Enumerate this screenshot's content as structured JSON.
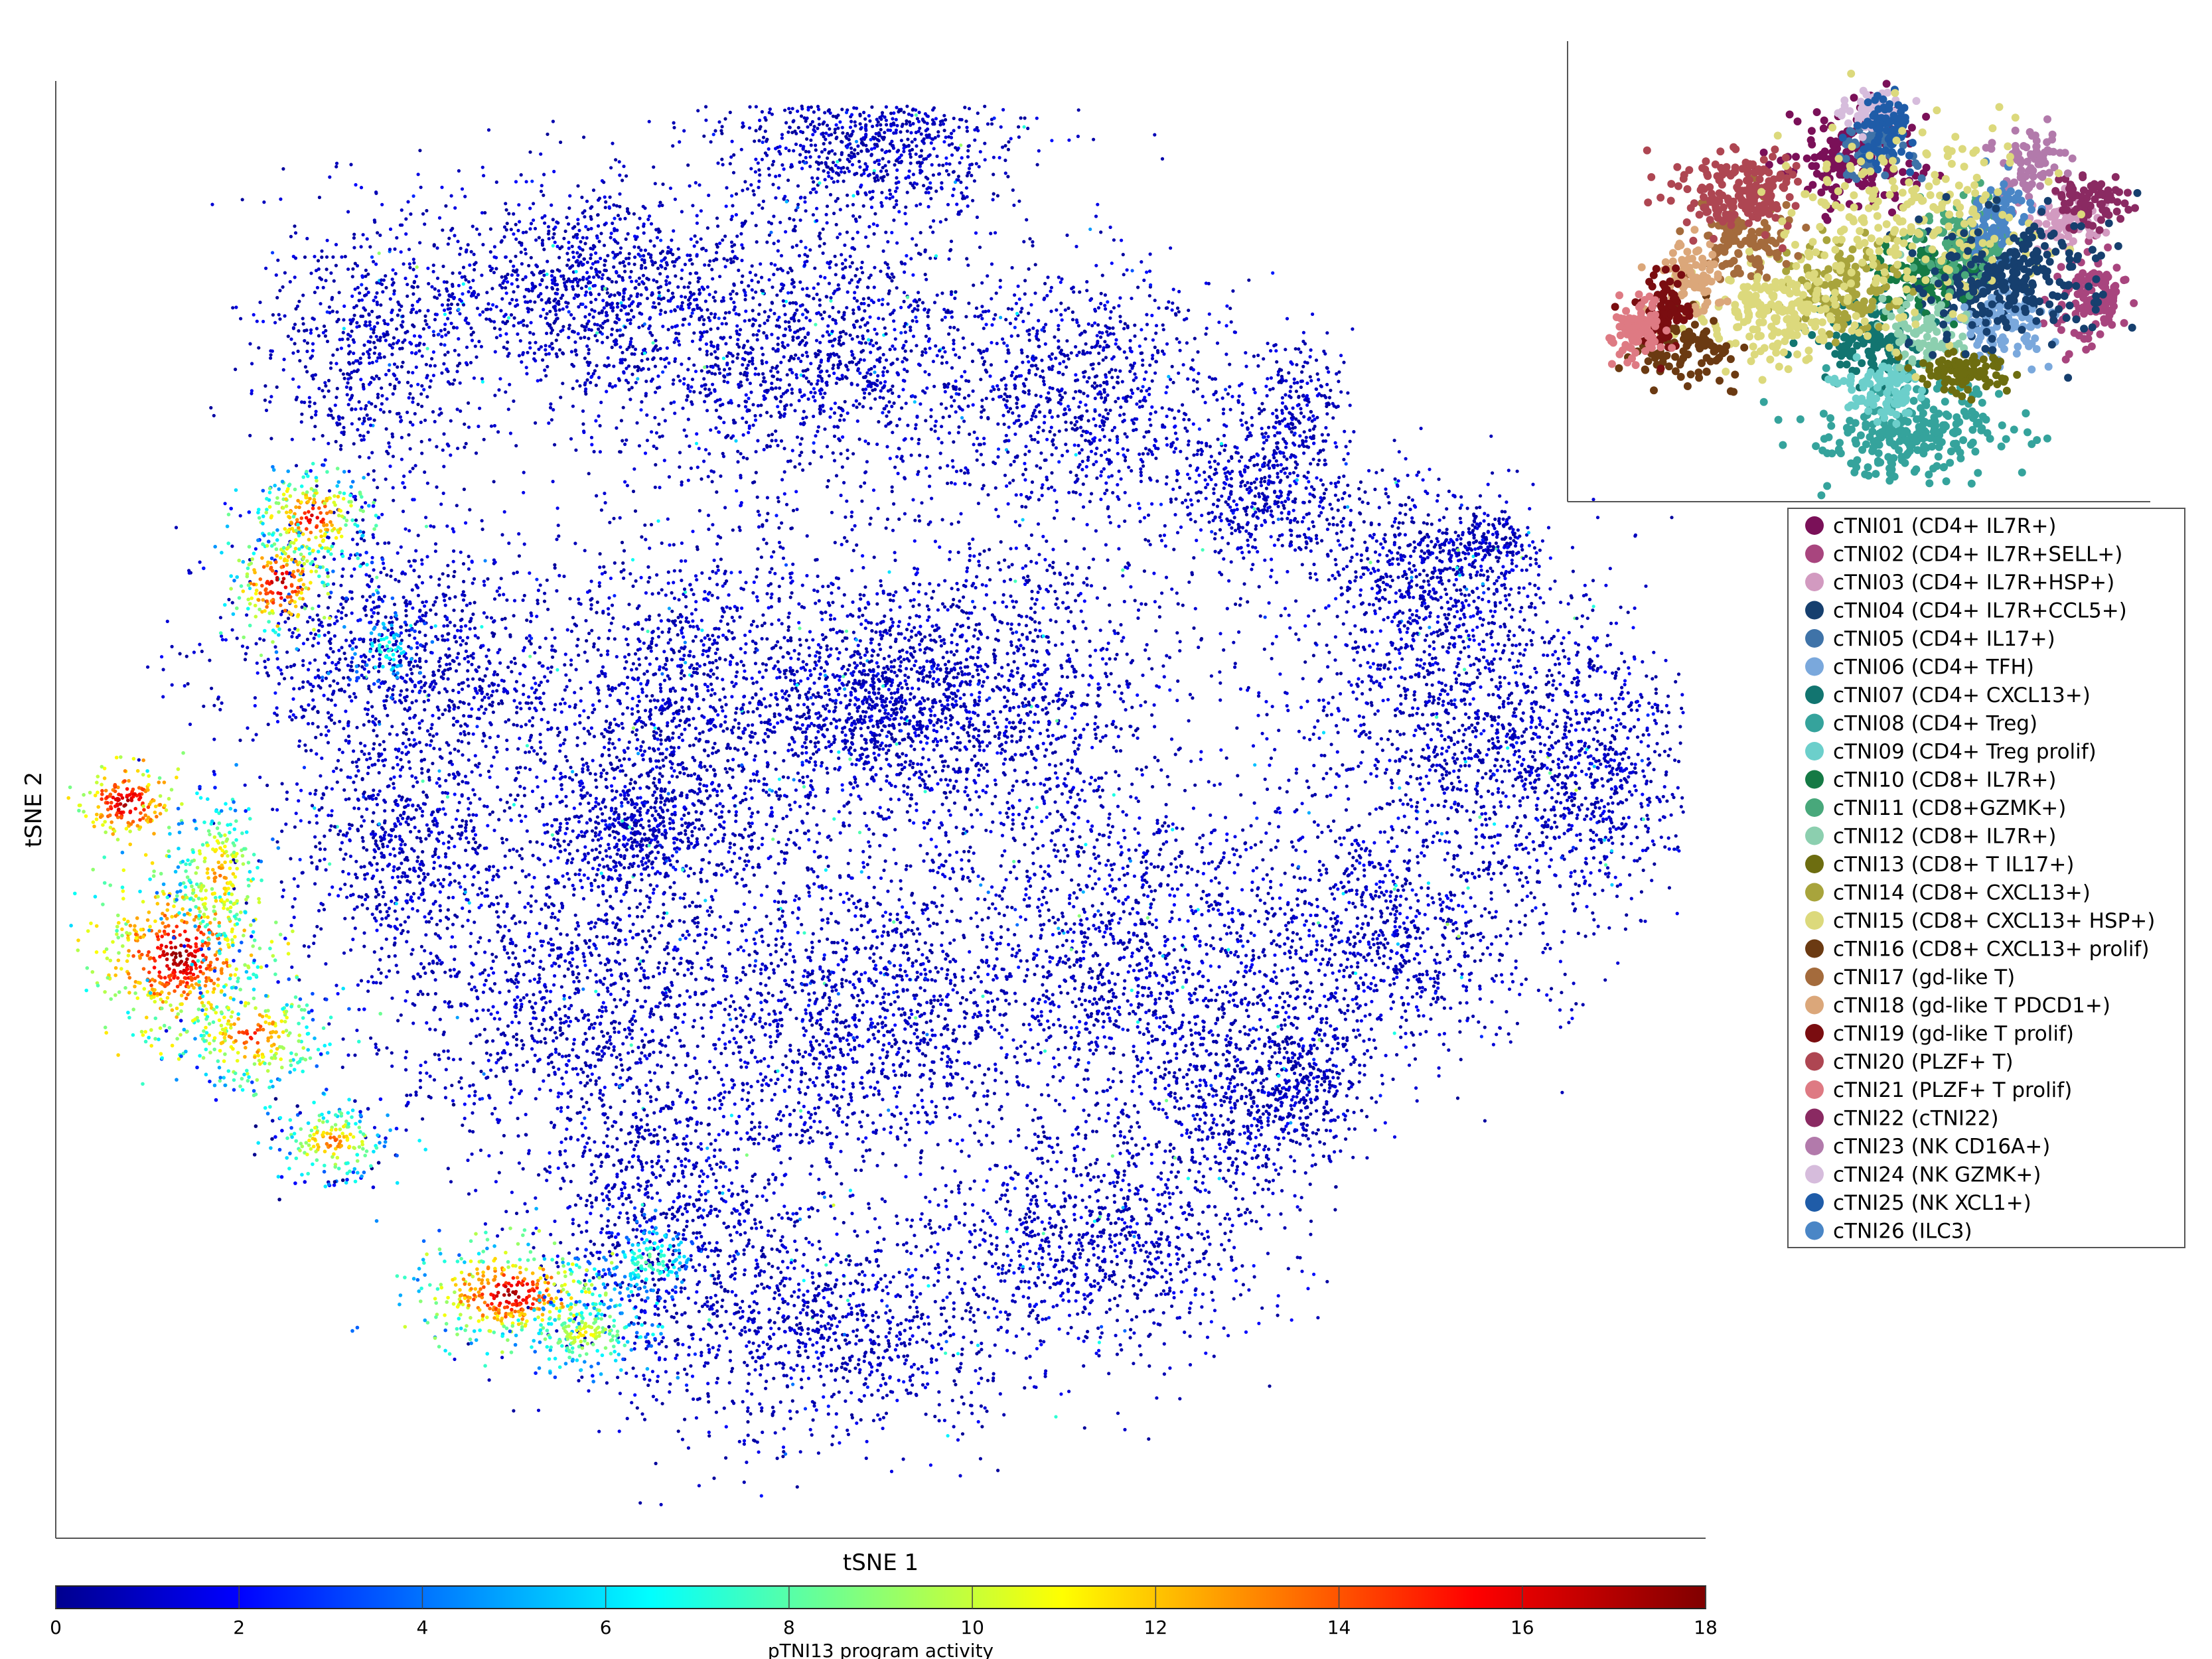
{
  "chart_data": [
    {
      "type": "scatter",
      "title": "",
      "xlabel": "tSNE 1",
      "ylabel": "tSNE 2",
      "color_scale": {
        "colormap": "jet",
        "label": "pTNI13 program activity",
        "range": [
          0,
          18
        ],
        "ticks": [
          "0",
          "2",
          "4",
          "6",
          "8",
          "10",
          "12",
          "14",
          "16",
          "18"
        ]
      },
      "grid": false,
      "regions": [
        {
          "desc": "main cell cloud",
          "activity_range": [
            0,
            3
          ]
        },
        {
          "desc": "left-edge upper cluster",
          "activity_range": [
            6,
            18
          ]
        },
        {
          "desc": "left-edge middle cluster",
          "activity_range": [
            4,
            18
          ]
        },
        {
          "desc": "left-edge lower cluster",
          "activity_range": [
            4,
            18
          ]
        },
        {
          "desc": "bottom-left cluster",
          "activity_range": [
            4,
            18
          ]
        }
      ]
    },
    {
      "type": "scatter",
      "title": "",
      "xlabel": "",
      "ylabel": "",
      "note_visible_text": "",
      "legend": {
        "placement": "right",
        "entries": [
          {
            "label": "cTNI01 (CD4+ IL7R+)",
            "color": "#7a1058"
          },
          {
            "label": "cTNI02 (CD4+ IL7R+SELL+)",
            "color": "#a8457e"
          },
          {
            "label": "cTNI03 (CD4+ IL7R+HSP+)",
            "color": "#d29ac0"
          },
          {
            "label": "cTNI04 (CD4+ IL7R+CCL5+)",
            "color": "#163f6e"
          },
          {
            "label": "cTNI05 (CD4+ IL17+)",
            "color": "#3f73a8"
          },
          {
            "label": "cTNI06 (CD4+ TFH)",
            "color": "#7aa8dc"
          },
          {
            "label": "cTNI07 (CD4+ CXCL13+)",
            "color": "#127570"
          },
          {
            "label": "cTNI08 (CD4+ Treg)",
            "color": "#35a39c"
          },
          {
            "label": "cTNI09 (CD4+ Treg prolif)",
            "color": "#6ccfcb"
          },
          {
            "label": "cTNI10 (CD8+ IL7R+)",
            "color": "#157a45"
          },
          {
            "label": "cTNI11 (CD8+GZMK+)",
            "color": "#48a87b"
          },
          {
            "label": "cTNI12 (CD8+ IL7R+)",
            "color": "#8ccfaf"
          },
          {
            "label": "cTNI13 (CD8+ T IL17+)",
            "color": "#6d6d10"
          },
          {
            "label": "cTNI14 (CD8+ CXCL13+)",
            "color": "#a8a43c"
          },
          {
            "label": "cTNI15 (CD8+ CXCL13+ HSP+)",
            "color": "#dcd97c"
          },
          {
            "label": "cTNI16 (CD8+ CXCL13+ prolif)",
            "color": "#6b3a12"
          },
          {
            "label": "cTNI17 (gd-like T)",
            "color": "#a46b3c"
          },
          {
            "label": "cTNI18 (gd-like T PDCD1+)",
            "color": "#dba77a"
          },
          {
            "label": "cTNI19 (gd-like T prolif)",
            "color": "#7a0d10"
          },
          {
            "label": "cTNI20 (PLZF+ T)",
            "color": "#ae4652"
          },
          {
            "label": "cTNI21 (PLZF+ T prolif)",
            "color": "#de7a83"
          },
          {
            "label": "cTNI22 (cTNI22)",
            "color": "#8a2a62"
          },
          {
            "label": "cTNI23 (NK CD16A+)",
            "color": "#b27aab"
          },
          {
            "label": "cTNI24 (NK GZMK+)",
            "color": "#d6bcdc"
          },
          {
            "label": "cTNI25 (NK XCL1+)",
            "color": "#1f5ca8"
          },
          {
            "label": "cTNI26 (ILC3)",
            "color": "#4a86c6"
          }
        ]
      }
    }
  ]
}
